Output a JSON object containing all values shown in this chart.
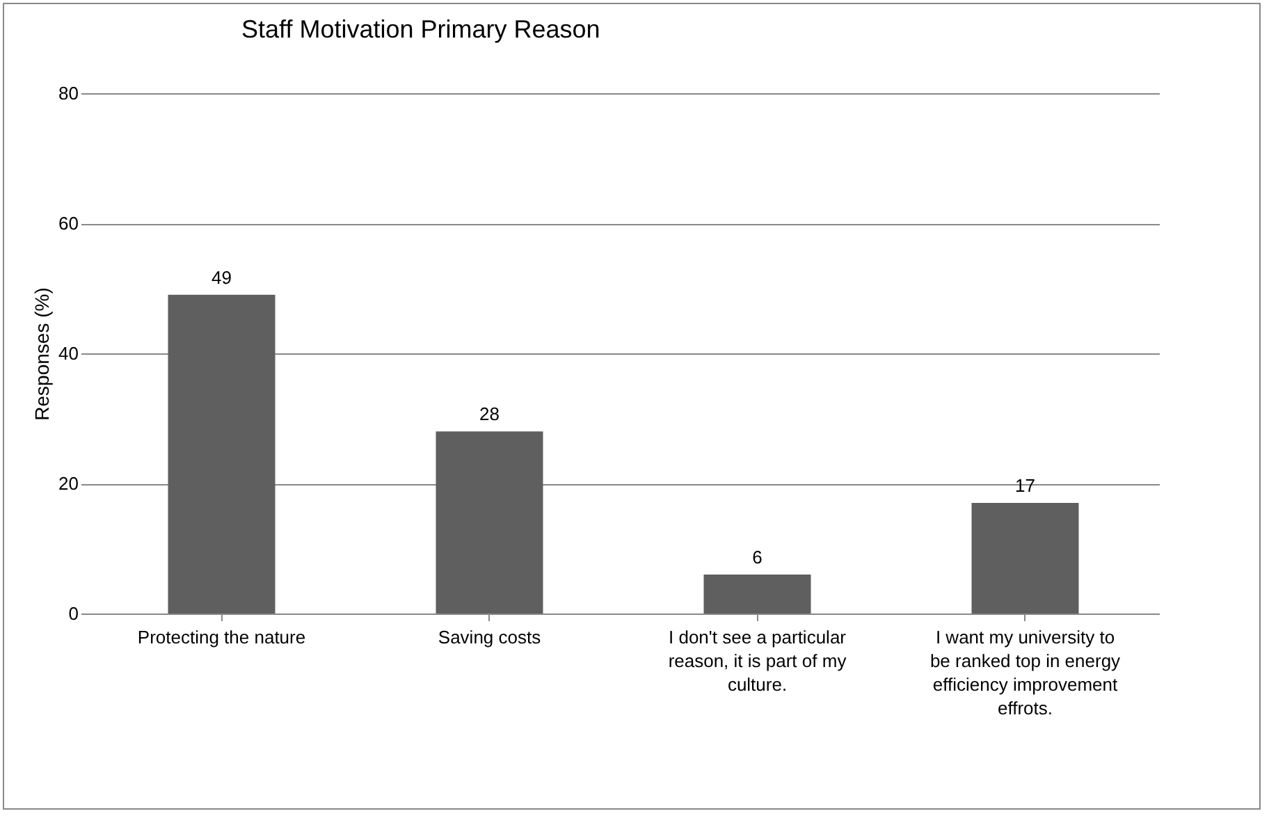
{
  "chart_data": {
    "type": "bar",
    "title": "Staff  Motivation Primary Reason",
    "ylabel": "Responses (%)",
    "categories": [
      "Protecting the nature",
      "Saving costs",
      "I don't see a particular reason, it is part of my culture.",
      "I want my university to be ranked top in energy efficiency improvement effrots."
    ],
    "values": [
      49,
      28,
      6,
      17
    ],
    "color": "#5f5f5f",
    "ylim": [
      0,
      80
    ],
    "yticks": [
      0,
      20,
      40,
      60,
      80
    ],
    "grid": "y",
    "data_labels": true
  }
}
